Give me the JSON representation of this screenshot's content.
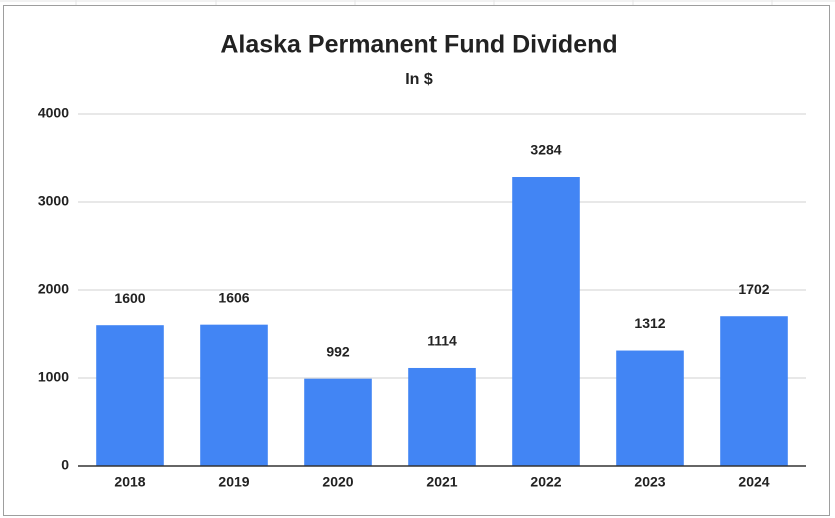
{
  "chart_data": {
    "type": "bar",
    "title": "Alaska Permanent Fund Dividend",
    "subtitle": "In $",
    "categories": [
      "2018",
      "2019",
      "2020",
      "2021",
      "2022",
      "2023",
      "2024"
    ],
    "values": [
      1600,
      1606,
      992,
      1114,
      3284,
      1312,
      1702
    ],
    "color": "#4285f4",
    "ylim": [
      0,
      4000
    ],
    "yticks": [
      0,
      1000,
      2000,
      3000,
      4000
    ],
    "grid": true
  }
}
